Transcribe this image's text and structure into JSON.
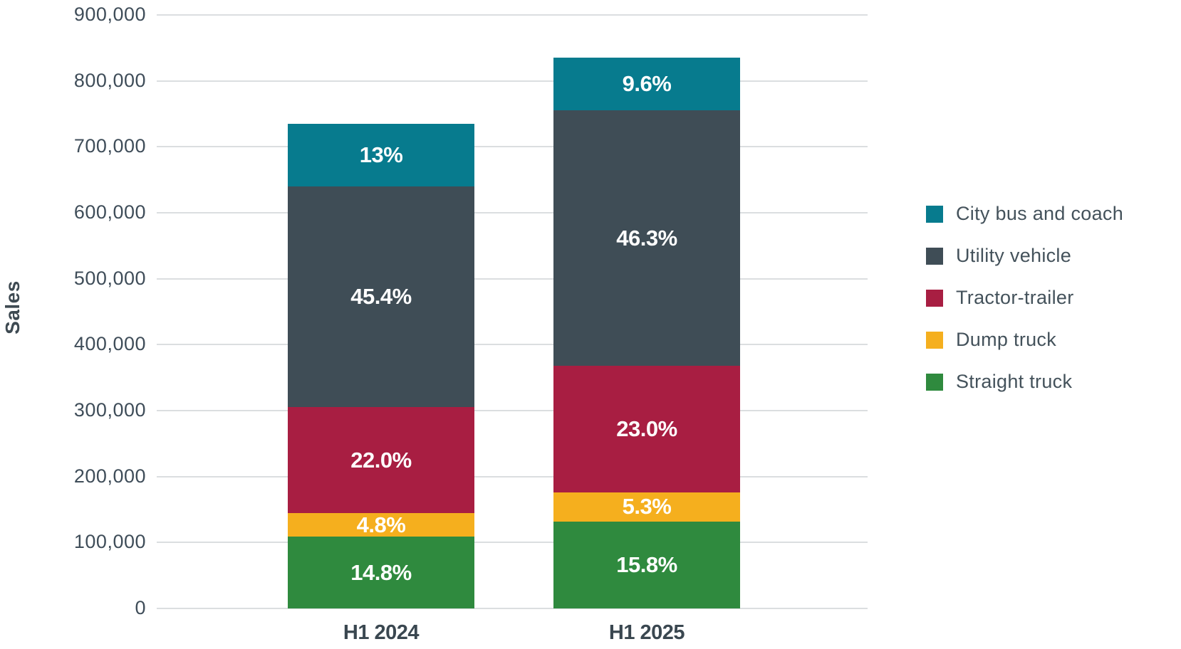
{
  "page": {
    "background": "#ffffff"
  },
  "chart_data": {
    "type": "bar",
    "stacked": true,
    "title": "",
    "xlabel": "",
    "ylabel": "Sales",
    "categories": [
      "H1 2024",
      "H1 2025"
    ],
    "series": [
      {
        "name": "Straight truck",
        "color": "#2F8A3E",
        "values": [
          108800,
          131900
        ],
        "labels": [
          "14.8%",
          "15.8%"
        ]
      },
      {
        "name": "Dump truck",
        "color": "#F5AF1E",
        "values": [
          35300,
          44300
        ],
        "labels": [
          "4.8%",
          "5.3%"
        ]
      },
      {
        "name": "Tractor-trailer",
        "color": "#A81E42",
        "values": [
          161700,
          192100
        ],
        "labels": [
          "22.0%",
          "23.0%"
        ]
      },
      {
        "name": "Utility vehicle",
        "color": "#3F4D56",
        "values": [
          333700,
          386600
        ],
        "labels": [
          "45.4%",
          "46.3%"
        ]
      },
      {
        "name": "City bus and coach",
        "color": "#077B8E",
        "values": [
          95600,
          80200
        ],
        "labels": [
          "13%",
          "9.6%"
        ]
      }
    ],
    "totals_estimated": [
      735000,
      835000
    ],
    "ylim": [
      0,
      900000
    ],
    "ytick_step": 100000,
    "yticks": [
      {
        "value": 0,
        "label": "0"
      },
      {
        "value": 100000,
        "label": "100,000"
      },
      {
        "value": 200000,
        "label": "200,000"
      },
      {
        "value": 300000,
        "label": "300,000"
      },
      {
        "value": 400000,
        "label": "400,000"
      },
      {
        "value": 500000,
        "label": "500,000"
      },
      {
        "value": 600000,
        "label": "600,000"
      },
      {
        "value": 700000,
        "label": "700,000"
      },
      {
        "value": 800000,
        "label": "800,000"
      },
      {
        "value": 900000,
        "label": "900,000"
      }
    ],
    "grid": true,
    "legend_position": "right",
    "legend_order": [
      "City bus and coach",
      "Utility vehicle",
      "Tractor-trailer",
      "Dump truck",
      "Straight truck"
    ]
  },
  "colors": {
    "grid": "#DBDEE0",
    "tick_text": "#3F4D59",
    "axis_title_text": "#3E4A52",
    "category_text": "#3A4750",
    "legend_text": "#44525B",
    "segment_label_text": "#FFFFFF"
  }
}
